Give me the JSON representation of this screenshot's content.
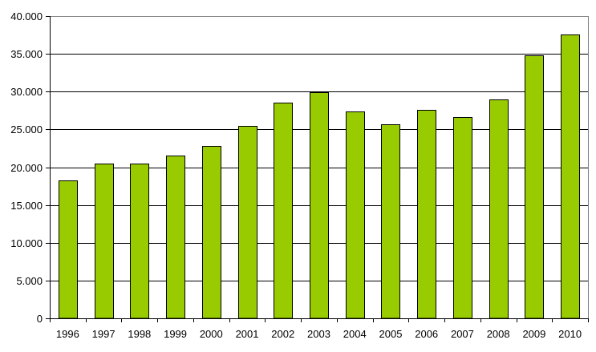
{
  "chart_data": {
    "type": "bar",
    "title": "",
    "xlabel": "",
    "ylabel": "",
    "categories": [
      "1996",
      "1997",
      "1998",
      "1999",
      "2000",
      "2001",
      "2002",
      "2003",
      "2004",
      "2005",
      "2006",
      "2007",
      "2008",
      "2009",
      "2010"
    ],
    "values": [
      18200,
      20500,
      20500,
      21550,
      22850,
      25450,
      28500,
      29900,
      27350,
      25650,
      27600,
      26600,
      28950,
      34750,
      37550
    ],
    "ylim": [
      0,
      40000
    ],
    "yticks": [
      0,
      5000,
      10000,
      15000,
      20000,
      25000,
      30000,
      35000,
      40000
    ],
    "ytick_labels": [
      "0",
      "5.000",
      "10.000",
      "15.000",
      "20.000",
      "25.000",
      "30.000",
      "35.000",
      "40.000"
    ],
    "grid": true,
    "legend": null,
    "colors": {
      "bar_fill": "#99CC00",
      "bar_stroke": "#000000",
      "gridline": "#000000",
      "plot_border": "#808080",
      "axis": "#000000"
    }
  }
}
